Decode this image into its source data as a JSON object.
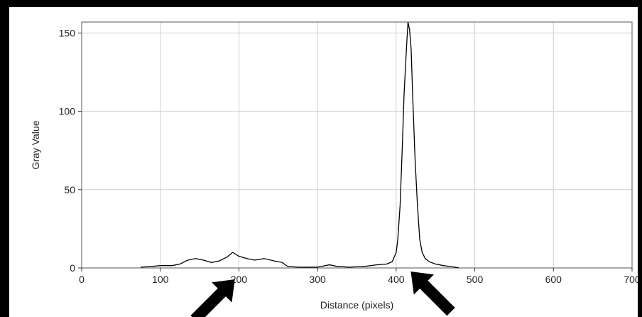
{
  "chart_data": {
    "type": "line",
    "title": "",
    "xlabel": "Distance (pixels)",
    "ylabel": "Gray Value",
    "xlim": [
      0,
      700
    ],
    "ylim": [
      0,
      157
    ],
    "x_ticks": [
      0,
      100,
      200,
      300,
      400,
      500,
      600,
      700
    ],
    "y_ticks": [
      0,
      50,
      100,
      150
    ],
    "grid": true,
    "legend": "none",
    "line_color": "#000000",
    "series": [
      {
        "x": [
          75,
          90,
          100,
          115,
          125,
          135,
          145,
          155,
          165,
          175,
          185,
          192,
          200,
          210,
          220,
          232,
          245,
          255,
          262,
          275,
          290,
          300,
          315,
          325,
          340,
          360,
          375,
          388,
          395,
          400,
          402,
          405,
          408,
          410,
          413,
          415,
          417,
          419,
          421,
          424,
          427,
          430,
          433,
          437,
          442,
          450,
          460,
          475,
          480
        ],
        "y": [
          0.5,
          1,
          1.5,
          1.5,
          2.5,
          5,
          6,
          5,
          3.5,
          4.5,
          7,
          10,
          7.5,
          6,
          5,
          6,
          4.5,
          3.5,
          1,
          0.5,
          0.5,
          0.5,
          2,
          1,
          0.5,
          1,
          2,
          2.5,
          4,
          10,
          18,
          40,
          80,
          110,
          140,
          157,
          152,
          140,
          110,
          70,
          40,
          18,
          10,
          6,
          4,
          2.5,
          1.5,
          0.5,
          0
        ]
      }
    ]
  },
  "annotations": {
    "arrows": [
      {
        "name": "left-arrow",
        "points_at_x": 193
      },
      {
        "name": "right-arrow",
        "points_at_x": 415
      }
    ]
  }
}
